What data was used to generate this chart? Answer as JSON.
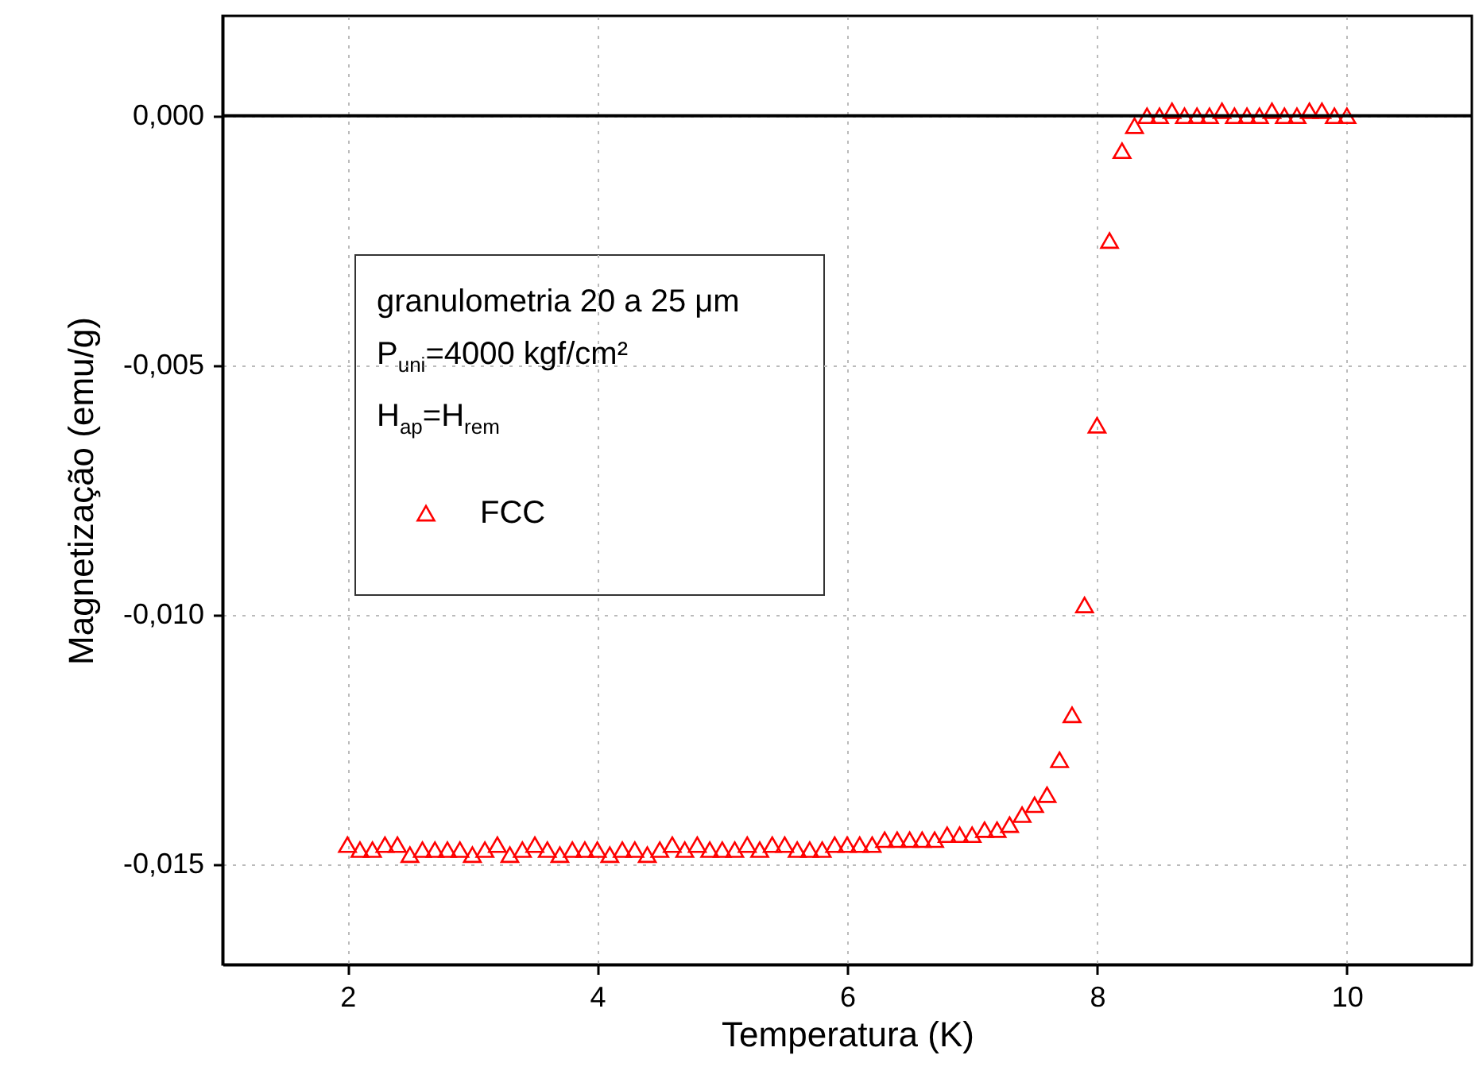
{
  "chart_data": {
    "type": "scatter",
    "xlabel": "Temperatura (K)",
    "ylabel": "Magnetização (emu/g)",
    "annotations": [
      "granulometria 20 a 25 μm",
      "P$_{uni}$=4000 kgf/cm²",
      "H$_{ap}$=H$_{rem}$"
    ],
    "x": [
      2.0,
      2.1,
      2.2,
      2.3,
      2.4,
      2.5,
      2.6,
      2.7,
      2.8,
      2.9,
      3.0,
      3.1,
      3.2,
      3.3,
      3.4,
      3.5,
      3.6,
      3.7,
      3.8,
      3.9,
      4.0,
      4.1,
      4.2,
      4.3,
      4.4,
      4.5,
      4.6,
      4.7,
      4.8,
      4.9,
      5.0,
      5.1,
      5.2,
      5.3,
      5.4,
      5.5,
      5.6,
      5.7,
      5.8,
      5.9,
      6.0,
      6.1,
      6.2,
      6.3,
      6.4,
      6.5,
      6.6,
      6.7,
      6.8,
      6.9,
      7.0,
      7.1,
      7.2,
      7.3,
      7.4,
      7.5,
      7.6,
      7.7,
      7.8,
      7.9,
      8.0,
      8.1,
      8.2,
      8.3,
      8.4,
      8.5,
      8.6,
      8.7,
      8.8,
      8.9,
      9.0,
      9.1,
      9.2,
      9.3,
      9.4,
      9.5,
      9.6,
      9.7,
      9.8,
      9.9,
      10.0
    ],
    "series": [
      {
        "name": "FCC",
        "color": "#ff0000",
        "values": [
          -0.0146,
          -0.0147,
          -0.0147,
          -0.0146,
          -0.0146,
          -0.0148,
          -0.0147,
          -0.0147,
          -0.0147,
          -0.0147,
          -0.0148,
          -0.0147,
          -0.0146,
          -0.0148,
          -0.0147,
          -0.0146,
          -0.0147,
          -0.0148,
          -0.0147,
          -0.0147,
          -0.0147,
          -0.0148,
          -0.0147,
          -0.0147,
          -0.0148,
          -0.0147,
          -0.0146,
          -0.0147,
          -0.0146,
          -0.0147,
          -0.0147,
          -0.0147,
          -0.0146,
          -0.0147,
          -0.0146,
          -0.0146,
          -0.0147,
          -0.0147,
          -0.0147,
          -0.0146,
          -0.0146,
          -0.0146,
          -0.0146,
          -0.0145,
          -0.0145,
          -0.0145,
          -0.0145,
          -0.0145,
          -0.0144,
          -0.0144,
          -0.0144,
          -0.0143,
          -0.0143,
          -0.0142,
          -0.014,
          -0.0138,
          -0.0136,
          -0.0129,
          -0.012,
          -0.0098,
          -0.0062,
          -0.0025,
          -0.0007,
          -0.0002,
          0.0,
          0.0,
          0.0001,
          0.0,
          0.0,
          0.0,
          0.0001,
          0.0,
          0.0,
          0.0,
          0.0001,
          0.0,
          0.0,
          0.0001,
          0.0001,
          0.0,
          0.0
        ]
      }
    ],
    "xlim": [
      1,
      11
    ],
    "xticks": [
      2,
      4,
      6,
      8,
      10
    ],
    "ylim": [
      -0.017,
      0.002
    ],
    "yticks": [
      {
        "value": 0,
        "label": "0,000"
      },
      {
        "value": -0.005,
        "label": "-0,005"
      },
      {
        "value": -0.01,
        "label": "-0,010"
      },
      {
        "value": -0.015,
        "label": "-0,015"
      }
    ],
    "ref_lines": [
      {
        "axis": "y",
        "value": 0,
        "color": "#000000",
        "line_style": "solid"
      }
    ],
    "grid": true,
    "legend": "left",
    "marker": "triangle"
  }
}
